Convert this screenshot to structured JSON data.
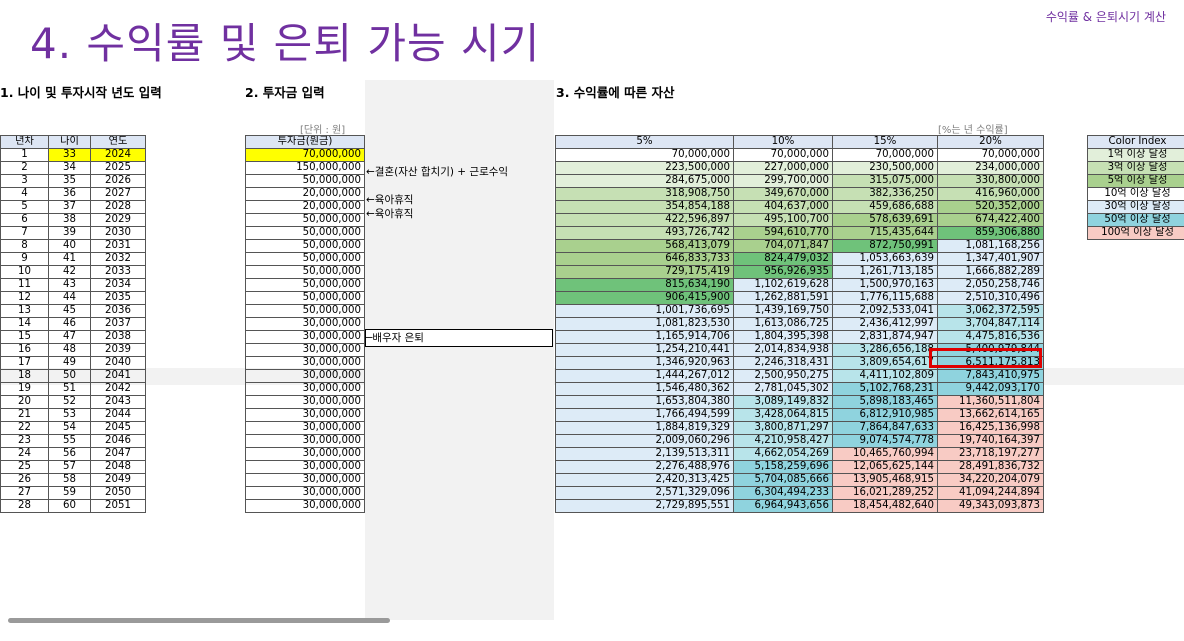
{
  "page": {
    "title": "4. 수익률 및 은퇴 가능 시기",
    "top_right": "수익률 & 은퇴시기 계산"
  },
  "sections": {
    "s1": "1. 나이 및 투자시작 년도 입력",
    "s2": "2. 투자금 입력",
    "s3": "3. 수익률에 따른 자산"
  },
  "units": {
    "left": "[단위 : 원]",
    "right": "[%는 년 수익률]"
  },
  "left_headers": [
    "년차",
    "나이",
    "연도"
  ],
  "invest_header": "투자금(원금)",
  "returns_headers": [
    "5%",
    "10%",
    "15%",
    "20%"
  ],
  "rows": [
    {
      "n": "1",
      "age": "33",
      "year": "2024",
      "inv": "70,000,000",
      "note": "",
      "a": "70,000,000",
      "b": "70,000,000",
      "c": "70,000,000",
      "d": "70,000,000"
    },
    {
      "n": "2",
      "age": "34",
      "year": "2025",
      "inv": "150,000,000",
      "note": "←결혼(자산 합치기) + 근로수익",
      "a": "223,500,000",
      "b": "227,000,000",
      "c": "230,500,000",
      "d": "234,000,000"
    },
    {
      "n": "3",
      "age": "35",
      "year": "2026",
      "inv": "50,000,000",
      "note": "",
      "a": "284,675,000",
      "b": "299,700,000",
      "c": "315,075,000",
      "d": "330,800,000"
    },
    {
      "n": "4",
      "age": "36",
      "year": "2027",
      "inv": "20,000,000",
      "note": "←육아휴직",
      "a": "318,908,750",
      "b": "349,670,000",
      "c": "382,336,250",
      "d": "416,960,000"
    },
    {
      "n": "5",
      "age": "37",
      "year": "2028",
      "inv": "20,000,000",
      "note": "←육아휴직",
      "a": "354,854,188",
      "b": "404,637,000",
      "c": "459,686,688",
      "d": "520,352,000"
    },
    {
      "n": "6",
      "age": "38",
      "year": "2029",
      "inv": "50,000,000",
      "note": "",
      "a": "422,596,897",
      "b": "495,100,700",
      "c": "578,639,691",
      "d": "674,422,400"
    },
    {
      "n": "7",
      "age": "39",
      "year": "2030",
      "inv": "50,000,000",
      "note": "",
      "a": "493,726,742",
      "b": "594,610,770",
      "c": "715,435,644",
      "d": "859,306,880"
    },
    {
      "n": "8",
      "age": "40",
      "year": "2031",
      "inv": "50,000,000",
      "note": "",
      "a": "568,413,079",
      "b": "704,071,847",
      "c": "872,750,991",
      "d": "1,081,168,256"
    },
    {
      "n": "9",
      "age": "41",
      "year": "2032",
      "inv": "50,000,000",
      "note": "",
      "a": "646,833,733",
      "b": "824,479,032",
      "c": "1,053,663,639",
      "d": "1,347,401,907"
    },
    {
      "n": "10",
      "age": "42",
      "year": "2033",
      "inv": "50,000,000",
      "note": "",
      "a": "729,175,419",
      "b": "956,926,935",
      "c": "1,261,713,185",
      "d": "1,666,882,289"
    },
    {
      "n": "11",
      "age": "43",
      "year": "2034",
      "inv": "50,000,000",
      "note": "",
      "a": "815,634,190",
      "b": "1,102,619,628",
      "c": "1,500,970,163",
      "d": "2,050,258,746"
    },
    {
      "n": "12",
      "age": "44",
      "year": "2035",
      "inv": "50,000,000",
      "note": "",
      "a": "906,415,900",
      "b": "1,262,881,591",
      "c": "1,776,115,688",
      "d": "2,510,310,496"
    },
    {
      "n": "13",
      "age": "45",
      "year": "2036",
      "inv": "50,000,000",
      "note": "",
      "a": "1,001,736,695",
      "b": "1,439,169,750",
      "c": "2,092,533,041",
      "d": "3,062,372,595"
    },
    {
      "n": "14",
      "age": "46",
      "year": "2037",
      "inv": "30,000,000",
      "note": "─배우자 은퇴",
      "a": "1,081,823,530",
      "b": "1,613,086,725",
      "c": "2,436,412,997",
      "d": "3,704,847,114"
    },
    {
      "n": "15",
      "age": "47",
      "year": "2038",
      "inv": "30,000,000",
      "note": "",
      "a": "1,165,914,706",
      "b": "1,804,395,398",
      "c": "2,831,874,947",
      "d": "4,475,816,536"
    },
    {
      "n": "16",
      "age": "48",
      "year": "2039",
      "inv": "30,000,000",
      "note": "",
      "a": "1,254,210,441",
      "b": "2,014,834,938",
      "c": "3,286,656,188",
      "d": "5,400,979,844"
    },
    {
      "n": "17",
      "age": "49",
      "year": "2040",
      "inv": "30,000,000",
      "note": "",
      "a": "1,346,920,963",
      "b": "2,246,318,431",
      "c": "3,809,654,617",
      "d": "6,511,175,813"
    },
    {
      "n": "18",
      "age": "50",
      "year": "2041",
      "inv": "30,000,000",
      "note": "",
      "a": "1,444,267,012",
      "b": "2,500,950,275",
      "c": "4,411,102,809",
      "d": "7,843,410,975"
    },
    {
      "n": "19",
      "age": "51",
      "year": "2042",
      "inv": "30,000,000",
      "note": "",
      "a": "1,546,480,362",
      "b": "2,781,045,302",
      "c": "5,102,768,231",
      "d": "9,442,093,170"
    },
    {
      "n": "20",
      "age": "52",
      "year": "2043",
      "inv": "30,000,000",
      "note": "",
      "a": "1,653,804,380",
      "b": "3,089,149,832",
      "c": "5,898,183,465",
      "d": "11,360,511,804"
    },
    {
      "n": "21",
      "age": "53",
      "year": "2044",
      "inv": "30,000,000",
      "note": "",
      "a": "1,766,494,599",
      "b": "3,428,064,815",
      "c": "6,812,910,985",
      "d": "13,662,614,165"
    },
    {
      "n": "22",
      "age": "54",
      "year": "2045",
      "inv": "30,000,000",
      "note": "",
      "a": "1,884,819,329",
      "b": "3,800,871,297",
      "c": "7,864,847,633",
      "d": "16,425,136,998"
    },
    {
      "n": "23",
      "age": "55",
      "year": "2046",
      "inv": "30,000,000",
      "note": "",
      "a": "2,009,060,296",
      "b": "4,210,958,427",
      "c": "9,074,574,778",
      "d": "19,740,164,397"
    },
    {
      "n": "24",
      "age": "56",
      "year": "2047",
      "inv": "30,000,000",
      "note": "",
      "a": "2,139,513,311",
      "b": "4,662,054,269",
      "c": "10,465,760,994",
      "d": "23,718,197,277"
    },
    {
      "n": "25",
      "age": "57",
      "year": "2048",
      "inv": "30,000,000",
      "note": "",
      "a": "2,276,488,976",
      "b": "5,158,259,696",
      "c": "12,065,625,144",
      "d": "28,491,836,732"
    },
    {
      "n": "26",
      "age": "58",
      "year": "2049",
      "inv": "30,000,000",
      "note": "",
      "a": "2,420,313,425",
      "b": "5,704,085,666",
      "c": "13,905,468,915",
      "d": "34,220,204,079"
    },
    {
      "n": "27",
      "age": "59",
      "year": "2050",
      "inv": "30,000,000",
      "note": "",
      "a": "2,571,329,096",
      "b": "6,304,494,233",
      "c": "16,021,289,252",
      "d": "41,094,244,894"
    },
    {
      "n": "28",
      "age": "60",
      "year": "2051",
      "inv": "30,000,000",
      "note": "",
      "a": "2,729,895,551",
      "b": "6,964,943,656",
      "c": "18,454,482,640",
      "d": "49,343,093,873"
    }
  ],
  "color_index": {
    "header": "Color Index",
    "items": [
      {
        "label": "1억 이상 달성",
        "color": "#e2efda"
      },
      {
        "label": "3억 이상 달성",
        "color": "#c6e0b4"
      },
      {
        "label": "5억 이상 달성",
        "color": "#a9d08e"
      },
      {
        "label": "10억 이상 달성",
        "color": "#ffffff"
      },
      {
        "label": "30억 이상 달성",
        "color": "#ddebf7"
      },
      {
        "label": "50억 이상 달성",
        "color": "#8fd3de"
      },
      {
        "label": "100억 이상 달성",
        "color": "#f8cbc4"
      }
    ]
  },
  "colors": {
    "title": "#7030a0",
    "input_highlight": "#ffff00",
    "header_fill": "#dde6f4",
    "green_1": "#e2efda",
    "green_3": "#c6e0b4",
    "green_5": "#a9d08e",
    "green_8": "#6fc27a",
    "blue_10": "#ddebf7",
    "teal_30": "#b8e4ea",
    "teal_50": "#8fd3de",
    "red_100": "#f8cbc4",
    "marker": "#e00000"
  }
}
